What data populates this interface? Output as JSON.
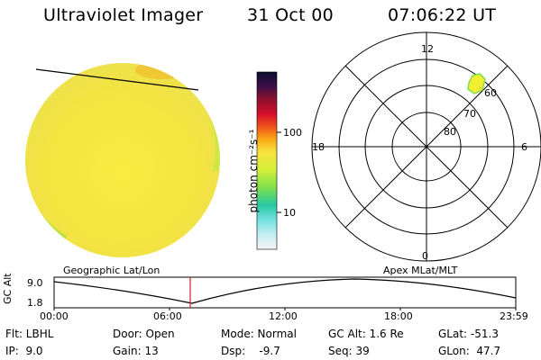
{
  "header": {
    "instrument": "Ultraviolet Imager",
    "date": "31 Oct 00",
    "time": "07:06:22 UT"
  },
  "colorbar": {
    "unit_label": "photon cm⁻²s⁻¹",
    "tick_100": "100",
    "tick_10": "10"
  },
  "polar_plot": {
    "mlt_top": "12",
    "mlt_left": "18",
    "mlt_right": "6",
    "mlt_bottom": "0",
    "lat_labels": [
      "60",
      "70",
      "80"
    ]
  },
  "timeline": {
    "left_title": "Geographic Lat/Lon",
    "right_title": "Apex MLat/MLT",
    "axis_label": "GC Alt",
    "y_top": "9.0",
    "y_bottom": "1.8",
    "x_ticks": [
      "00:00",
      "06:00",
      "12:00",
      "18:00",
      "23:59"
    ],
    "accent_color": "#cc2222"
  },
  "info_row1": {
    "flt": "Flt: LBHL",
    "door": "Door: Open",
    "mode": "Mode: Normal",
    "gcalt": "GC Alt: 1.6 Re",
    "glat": "GLat: -51.3"
  },
  "info_row2": {
    "ip": "IP:  9.0",
    "gain": "Gain: 13",
    "dsp": "Dsp:    -9.7",
    "seq": "Seq: 39",
    "glon": "GLon:  47.7"
  }
}
